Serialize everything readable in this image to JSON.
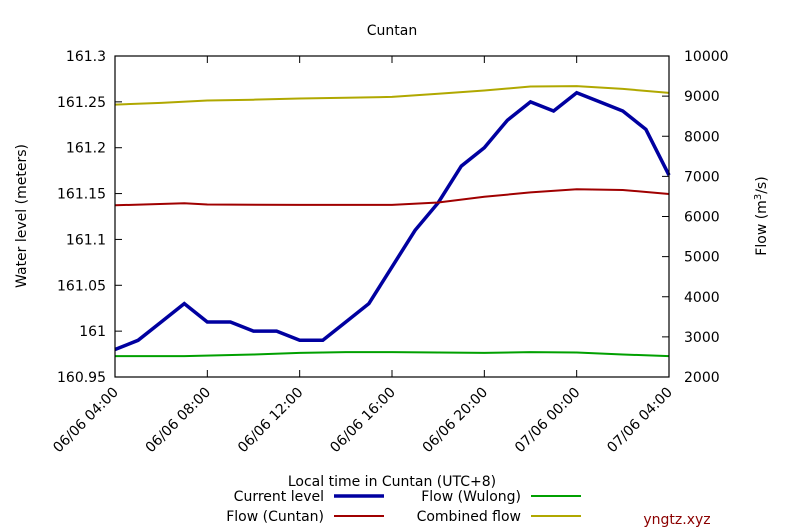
{
  "chart_data": {
    "type": "line",
    "title": "Cuntan",
    "xlabel": "Local time in Cuntan (UTC+8)",
    "ylabel": "Water level (meters)",
    "y2label_main": "Flow (m",
    "y2label_sup": "3",
    "y2label_end": "/s)",
    "xlim": [
      0,
      24
    ],
    "ylim": [
      160.95,
      161.3
    ],
    "y2lim": [
      2000,
      10000
    ],
    "x_ticks": [
      0,
      4,
      8,
      12,
      16,
      20,
      24
    ],
    "x_tick_labels": [
      "06/06 04:00",
      "06/06 08:00",
      "06/06 12:00",
      "06/06 16:00",
      "06/06 20:00",
      "07/06 00:00",
      "07/06 04:00"
    ],
    "y_ticks": [
      160.95,
      161,
      161.05,
      161.1,
      161.15,
      161.2,
      161.25,
      161.3
    ],
    "y_tick_labels": [
      "160.95",
      "161",
      "161.05",
      "161.1",
      "161.15",
      "161.2",
      "161.25",
      "161.3"
    ],
    "y2_ticks": [
      2000,
      3000,
      4000,
      5000,
      6000,
      7000,
      8000,
      9000,
      10000
    ],
    "y2_tick_labels": [
      "2000",
      "3000",
      "4000",
      "5000",
      "6000",
      "7000",
      "8000",
      "9000",
      "10000"
    ],
    "grid": false,
    "legend_position": "bottom",
    "series": [
      {
        "name": "Current level",
        "axis": "left",
        "color": "#0000a0",
        "width": 3.5,
        "x": [
          0,
          1,
          2,
          3,
          4,
          5,
          6,
          7,
          8,
          9,
          10,
          11,
          12,
          13,
          14,
          15,
          16,
          17,
          18,
          19,
          20,
          21,
          22,
          23,
          24
        ],
        "values": [
          160.98,
          160.99,
          161.01,
          161.03,
          161.01,
          161.01,
          161.0,
          161.0,
          160.99,
          160.99,
          161.01,
          161.03,
          161.07,
          161.11,
          161.14,
          161.18,
          161.2,
          161.23,
          161.25,
          161.24,
          161.26,
          161.25,
          161.24,
          161.22,
          161.17
        ]
      },
      {
        "name": "Flow (Cuntan)",
        "axis": "right",
        "color": "#a00000",
        "width": 2,
        "x": [
          0,
          3,
          4,
          8,
          12,
          14,
          16,
          18,
          20,
          22,
          24
        ],
        "values": [
          6280,
          6330,
          6300,
          6290,
          6290,
          6350,
          6490,
          6600,
          6680,
          6660,
          6560
        ]
      },
      {
        "name": "Flow (Wulong)",
        "axis": "right",
        "color": "#00a000",
        "width": 2,
        "x": [
          0,
          3,
          6,
          8,
          10,
          12,
          14,
          16,
          18,
          20,
          22,
          24
        ],
        "values": [
          2520,
          2520,
          2560,
          2600,
          2620,
          2620,
          2610,
          2600,
          2620,
          2610,
          2560,
          2520
        ]
      },
      {
        "name": "Combined flow",
        "axis": "right",
        "color": "#b0a800",
        "width": 2,
        "x": [
          0,
          2,
          4,
          6,
          8,
          10,
          12,
          14,
          16,
          18,
          20,
          22,
          24
        ],
        "values": [
          8790,
          8830,
          8890,
          8910,
          8940,
          8960,
          8980,
          9060,
          9140,
          9240,
          9250,
          9180,
          9080
        ]
      }
    ]
  },
  "watermark": "yngtz.xyz"
}
